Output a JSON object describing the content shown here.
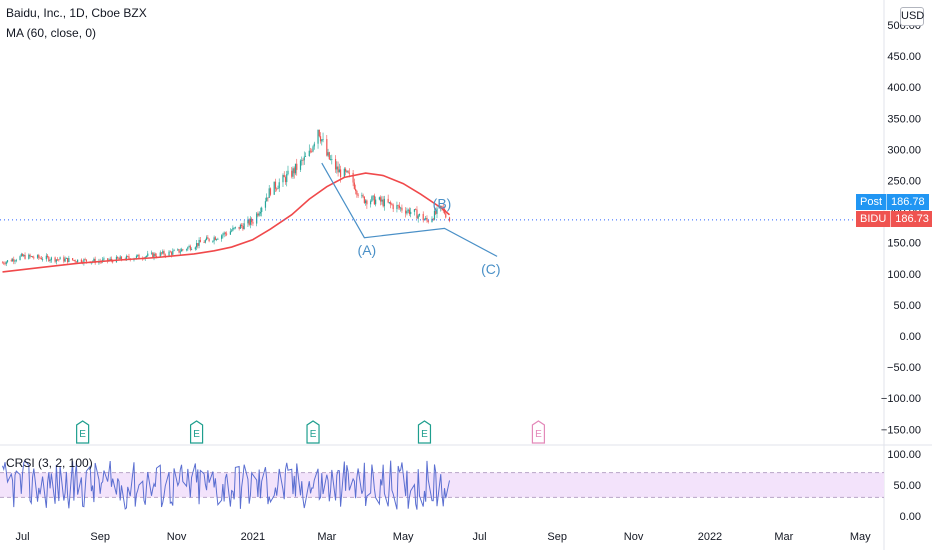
{
  "main": {
    "title": "Baidu, Inc., 1D, Cboe BZX",
    "ma_label": "MA (60, close, 0)",
    "currency": "USD",
    "colors": {
      "up": "#26a69a",
      "down": "#ef5350",
      "ma": "#f0494b",
      "wave": "#4a90c7",
      "price_line": "#2962ff",
      "earnings": "#1e9e8e",
      "earnings_future": "#e389b9"
    }
  },
  "price_tags": [
    {
      "label": "Post",
      "value": "186.78",
      "color": "#2196f3"
    },
    {
      "label": "BIDU",
      "value": "186.73",
      "color": "#ef5350"
    }
  ],
  "waves": [
    {
      "label": "(A)",
      "x": "2021-04-02",
      "y": 130
    },
    {
      "label": "(B)",
      "x": "2021-06-01",
      "y": 205
    },
    {
      "label": "(C)",
      "x": "2021-07-10",
      "y": 100
    }
  ],
  "earnings": [
    {
      "label": "E",
      "date": "2020-08-18",
      "future": false
    },
    {
      "label": "E",
      "date": "2020-11-17",
      "future": false
    },
    {
      "label": "E",
      "date": "2021-02-18",
      "future": false
    },
    {
      "label": "E",
      "date": "2021-05-18",
      "future": false
    },
    {
      "label": "E",
      "date": "2021-08-17",
      "future": true
    }
  ],
  "rsi_label": "CRSI (3, 2, 100)",
  "chart_data": [
    {
      "type": "line",
      "series": [
        {
          "name": "MA (60, close, 0)",
          "x": [
            "2020-06-15",
            "2020-07-15",
            "2020-08-15",
            "2020-09-15",
            "2020-10-15",
            "2020-11-15",
            "2020-12-01",
            "2020-12-15",
            "2021-01-01",
            "2021-01-15",
            "2021-02-01",
            "2021-02-15",
            "2021-03-01",
            "2021-03-15",
            "2021-04-01",
            "2021-04-15",
            "2021-05-01",
            "2021-05-15",
            "2021-06-01",
            "2021-06-07"
          ],
          "values": [
            103,
            110,
            117,
            122,
            126,
            132,
            137,
            143,
            155,
            172,
            195,
            220,
            240,
            255,
            262,
            258,
            245,
            228,
            205,
            195
          ]
        },
        {
          "name": "BIDU",
          "x": [
            "2020-06-15",
            "2020-07-01",
            "2020-08-01",
            "2020-09-01",
            "2020-10-01",
            "2020-11-01",
            "2020-11-20",
            "2020-12-10",
            "2021-01-01",
            "2021-01-15",
            "2021-02-01",
            "2021-02-15",
            "2021-02-22",
            "2021-03-01",
            "2021-03-10",
            "2021-03-20",
            "2021-03-29",
            "2021-04-10",
            "2021-04-25",
            "2021-05-10",
            "2021-05-20",
            "2021-06-01",
            "2021-06-07"
          ],
          "values": [
            118,
            128,
            123,
            120,
            127,
            135,
            150,
            165,
            185,
            235,
            262,
            292,
            335,
            290,
            265,
            255,
            220,
            218,
            208,
            198,
            185,
            205,
            187
          ]
        },
        {
          "name": "",
          "x": [
            "2021-02-25",
            "2021-03-31",
            "2021-06-03",
            "2021-07-15"
          ],
          "values": [
            278,
            158,
            173,
            128
          ]
        }
      ],
      "y_ticks": [
        "500.00",
        "450.00",
        "400.00",
        "350.00",
        "300.00",
        "250.00",
        "200.00",
        "150.00",
        "100.00",
        "50.00",
        "0.00",
        "−50.00",
        "−100.00",
        "−150.00"
      ],
      "x_ticks": [
        "Jul",
        "Sep",
        "Nov",
        "2021",
        "Mar",
        "May",
        "Jul",
        "Sep",
        "Nov",
        "2022",
        "Mar",
        "May"
      ],
      "ylim": [
        -170,
        520
      ],
      "xlim": [
        "2020-06-13",
        "2022-05-20"
      ],
      "grid": false,
      "last_price_line": 186.73
    },
    {
      "type": "line",
      "series": [
        {
          "name": "CRSI (3, 2, 100)",
          "x": [
            "2020-06-15",
            "2020-07-15",
            "2020-08-15",
            "2020-09-15",
            "2020-10-15",
            "2020-11-15",
            "2020-12-15",
            "2021-01-15",
            "2021-02-15",
            "2021-03-15",
            "2021-04-15",
            "2021-05-15",
            "2021-06-07"
          ],
          "values": [
            48,
            55,
            42,
            60,
            38,
            52,
            70,
            45,
            80,
            35,
            55,
            50,
            30
          ]
        }
      ],
      "y_ticks": [
        "100.00",
        "50.00",
        "0.00"
      ],
      "ylim": [
        -5,
        105
      ],
      "band": [
        30,
        70
      ]
    }
  ]
}
